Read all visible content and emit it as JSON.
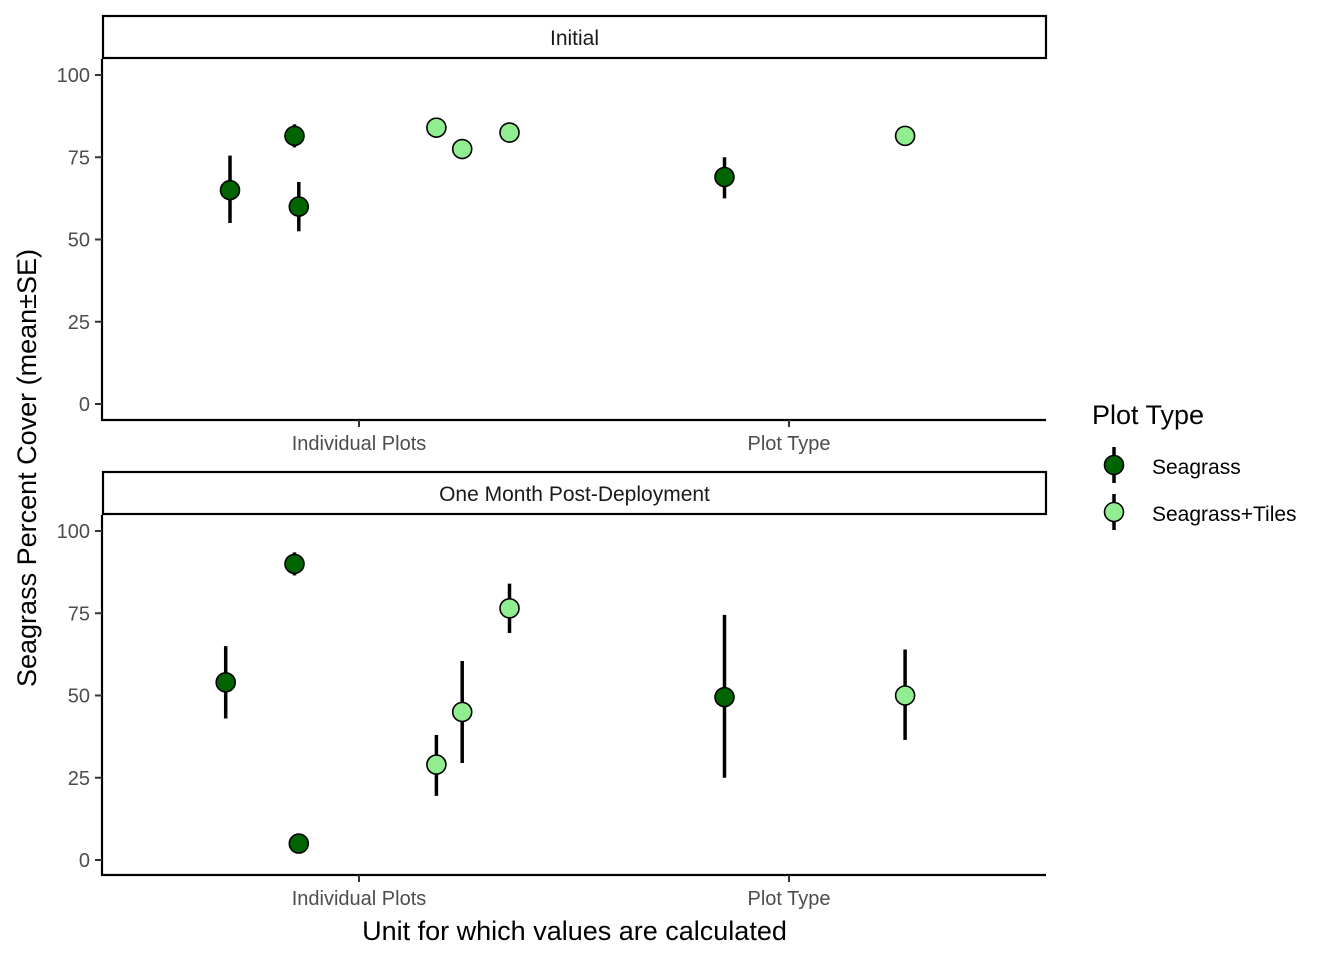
{
  "chart_data": {
    "type": "scatter",
    "subtype": "point-errorbar",
    "xlabel": "Unit for which values are calculated",
    "ylabel": "Seagrass Percent Cover  (mean±SE)",
    "categories": [
      "Individual Plots",
      "Plot Type"
    ],
    "ylim": [
      0,
      100
    ],
    "yticks": [
      0,
      25,
      50,
      75,
      100
    ],
    "legend": {
      "title": "Plot Type",
      "placement": "right",
      "entries": [
        {
          "name": "Seagrass",
          "color": "#006400"
        },
        {
          "name": "Seagrass+Tiles",
          "color": "#90EE90"
        }
      ]
    },
    "colors": {
      "Seagrass": "#006400",
      "Seagrass+Tiles": "#90EE90"
    },
    "facets": [
      {
        "title": "Initial",
        "points": [
          {
            "group": "Seagrass",
            "category": "Individual Plots",
            "x": 0.7,
            "y": 65,
            "lo": 55,
            "hi": 75.5
          },
          {
            "group": "Seagrass",
            "category": "Individual Plots",
            "x": 0.85,
            "y": 81.5,
            "lo": 78,
            "hi": 85
          },
          {
            "group": "Seagrass",
            "category": "Individual Plots",
            "x": 0.86,
            "y": 60,
            "lo": 52.5,
            "hi": 67.5
          },
          {
            "group": "Seagrass+Tiles",
            "category": "Individual Plots",
            "x": 1.18,
            "y": 84,
            "lo": 84,
            "hi": 84
          },
          {
            "group": "Seagrass+Tiles",
            "category": "Individual Plots",
            "x": 1.24,
            "y": 77.5,
            "lo": 77.5,
            "hi": 77.5
          },
          {
            "group": "Seagrass+Tiles",
            "category": "Individual Plots",
            "x": 1.35,
            "y": 82.5,
            "lo": 82.5,
            "hi": 82.5
          },
          {
            "group": "Seagrass",
            "category": "Plot Type",
            "x": 1.85,
            "y": 69,
            "lo": 62.5,
            "hi": 75
          },
          {
            "group": "Seagrass+Tiles",
            "category": "Plot Type",
            "x": 2.27,
            "y": 81.5,
            "lo": 81.5,
            "hi": 81.5
          }
        ]
      },
      {
        "title": "One Month Post-Deployment",
        "points": [
          {
            "group": "Seagrass",
            "category": "Individual Plots",
            "x": 0.69,
            "y": 54,
            "lo": 43,
            "hi": 65
          },
          {
            "group": "Seagrass",
            "category": "Individual Plots",
            "x": 0.85,
            "y": 90,
            "lo": 86.5,
            "hi": 93.5
          },
          {
            "group": "Seagrass",
            "category": "Individual Plots",
            "x": 0.86,
            "y": 5,
            "lo": 5,
            "hi": 5
          },
          {
            "group": "Seagrass+Tiles",
            "category": "Individual Plots",
            "x": 1.18,
            "y": 29,
            "lo": 19.5,
            "hi": 38
          },
          {
            "group": "Seagrass+Tiles",
            "category": "Individual Plots",
            "x": 1.24,
            "y": 45,
            "lo": 29.5,
            "hi": 60.5
          },
          {
            "group": "Seagrass+Tiles",
            "category": "Individual Plots",
            "x": 1.35,
            "y": 76.5,
            "lo": 69,
            "hi": 84
          },
          {
            "group": "Seagrass",
            "category": "Plot Type",
            "x": 1.85,
            "y": 49.5,
            "lo": 25,
            "hi": 74.5
          },
          {
            "group": "Seagrass+Tiles",
            "category": "Plot Type",
            "x": 2.27,
            "y": 50,
            "lo": 36.5,
            "hi": 64
          }
        ]
      }
    ]
  }
}
